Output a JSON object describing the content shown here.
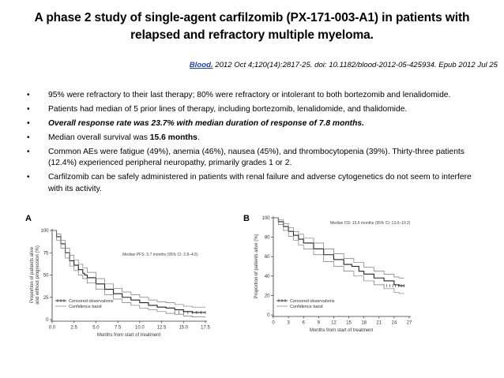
{
  "title_line1": "A phase 2 study of single-agent carfilzomib (PX-171-003-A1) in patients with",
  "title_line2": "relapsed and refractory multiple myeloma.",
  "citation": {
    "journal": "Blood.",
    "rest": " 2012 Oct 4;120(14):2817-25. doi: 10.1182/blood-2012-05-425934. Epub 2012 Jul 25"
  },
  "bullets": {
    "b1": "95% were refractory to their last therapy; 80% were refractory or intolerant to both bortezomib and lenalidomide.",
    "b2": "Patients had median of 5 prior lines of therapy, including bortezomib, lenalidomide, and thalidomide.",
    "b3": "Overall response rate was 23.7% with median duration of response of 7.8 months.",
    "b4_pre": " Median overall survival was ",
    "b4_bold": "15.6 months",
    "b4_post": ".",
    "b5": "Common AEs were fatigue (49%), anemia (46%), nausea (45%), and thrombocytopenia (39%). Thirty-three patients (12.4%) experienced peripheral neuropathy, primarily grades 1 or 2.",
    "b6": "Carfilzomib can be safely administered in patients with renal failure and adverse cytogenetics do not seem to interfere with its activity."
  },
  "chart_data": [
    {
      "type": "line",
      "panel_label": "A",
      "ylabel_line1": "Proportion of patients alive",
      "ylabel_line2": "and without progression (%)",
      "xlabel": "Months from start of treatment",
      "ylim": [
        0,
        100
      ],
      "xlim": [
        0,
        17.5
      ],
      "x_ticks": [
        "0.0",
        "2.5",
        "5.0",
        "7.5",
        "10.0",
        "12.5",
        "15.0",
        "17.5"
      ],
      "y_ticks": [
        "0",
        "25",
        "50",
        "75",
        "100"
      ],
      "annotation": "Median PFS: 3.7 months (95% CI: 2.8–4.6)",
      "legend": [
        "Censored observations",
        "Confidence band"
      ],
      "series": [
        {
          "role": "estimate",
          "x": [
            0,
            0.5,
            1,
            1.5,
            2,
            2.5,
            3,
            3.5,
            3.7,
            4,
            5,
            6,
            7,
            8,
            9,
            10,
            11,
            12,
            13,
            14,
            15,
            16,
            17.5
          ],
          "y": [
            100,
            93,
            85,
            75,
            66,
            61,
            56,
            52,
            50,
            47,
            40,
            34,
            29,
            25,
            22,
            19,
            16,
            14,
            13,
            11,
            9,
            8,
            8
          ]
        },
        {
          "role": "upper",
          "x": [
            0,
            0.5,
            1,
            1.5,
            2,
            2.5,
            3,
            3.5,
            4,
            5,
            6,
            7,
            8,
            9,
            10,
            11,
            12,
            13,
            14,
            15,
            16,
            17.5
          ],
          "y": [
            100,
            96,
            89,
            80,
            72,
            67,
            62,
            58,
            53,
            46,
            40,
            35,
            31,
            28,
            25,
            22,
            20,
            19,
            17,
            15,
            14,
            14
          ]
        },
        {
          "role": "lower",
          "x": [
            0,
            0.5,
            1,
            1.5,
            2,
            2.5,
            3,
            3.5,
            4,
            5,
            6,
            7,
            8,
            9,
            10,
            11,
            12,
            13,
            14,
            15,
            16,
            17.5
          ],
          "y": [
            100,
            89,
            80,
            69,
            60,
            55,
            50,
            46,
            41,
            34,
            28,
            23,
            19,
            16,
            13,
            11,
            9,
            7,
            6,
            4,
            3,
            3
          ]
        }
      ]
    },
    {
      "type": "line",
      "panel_label": "B",
      "ylabel_line1": "Proportion of patients alive (%)",
      "xlabel": "Months from start of treatment",
      "ylim": [
        0,
        100
      ],
      "xlim": [
        0,
        27
      ],
      "x_ticks": [
        "0",
        "3",
        "6",
        "9",
        "12",
        "15",
        "18",
        "21",
        "24",
        "27"
      ],
      "y_ticks": [
        "0",
        "20",
        "40",
        "60",
        "80",
        "100"
      ],
      "annotation": "Median OS: 15.6 months (95% CI: 13.0–19.2)",
      "legend": [
        "Censored observations",
        "Confidence band"
      ],
      "series": [
        {
          "role": "estimate",
          "x": [
            0,
            1,
            2,
            3,
            4,
            5,
            6,
            8,
            10,
            12,
            14,
            15.6,
            17,
            18,
            20,
            22,
            24,
            25,
            26
          ],
          "y": [
            100,
            96,
            91,
            86,
            82,
            78,
            74,
            68,
            62,
            57,
            52,
            50,
            45,
            42,
            38,
            35,
            31,
            30,
            30
          ]
        },
        {
          "role": "upper",
          "x": [
            0,
            1,
            2,
            3,
            4,
            5,
            6,
            8,
            10,
            12,
            14,
            16,
            18,
            20,
            22,
            24,
            25,
            26
          ],
          "y": [
            100,
            98,
            94,
            90,
            86,
            83,
            79,
            74,
            68,
            63,
            58,
            54,
            49,
            45,
            42,
            39,
            38,
            38
          ]
        },
        {
          "role": "lower",
          "x": [
            0,
            1,
            2,
            3,
            4,
            5,
            6,
            8,
            10,
            12,
            14,
            16,
            18,
            20,
            22,
            24,
            25,
            26
          ],
          "y": [
            100,
            93,
            87,
            81,
            77,
            72,
            68,
            62,
            55,
            50,
            45,
            40,
            35,
            31,
            27,
            23,
            22,
            22
          ]
        }
      ]
    }
  ]
}
